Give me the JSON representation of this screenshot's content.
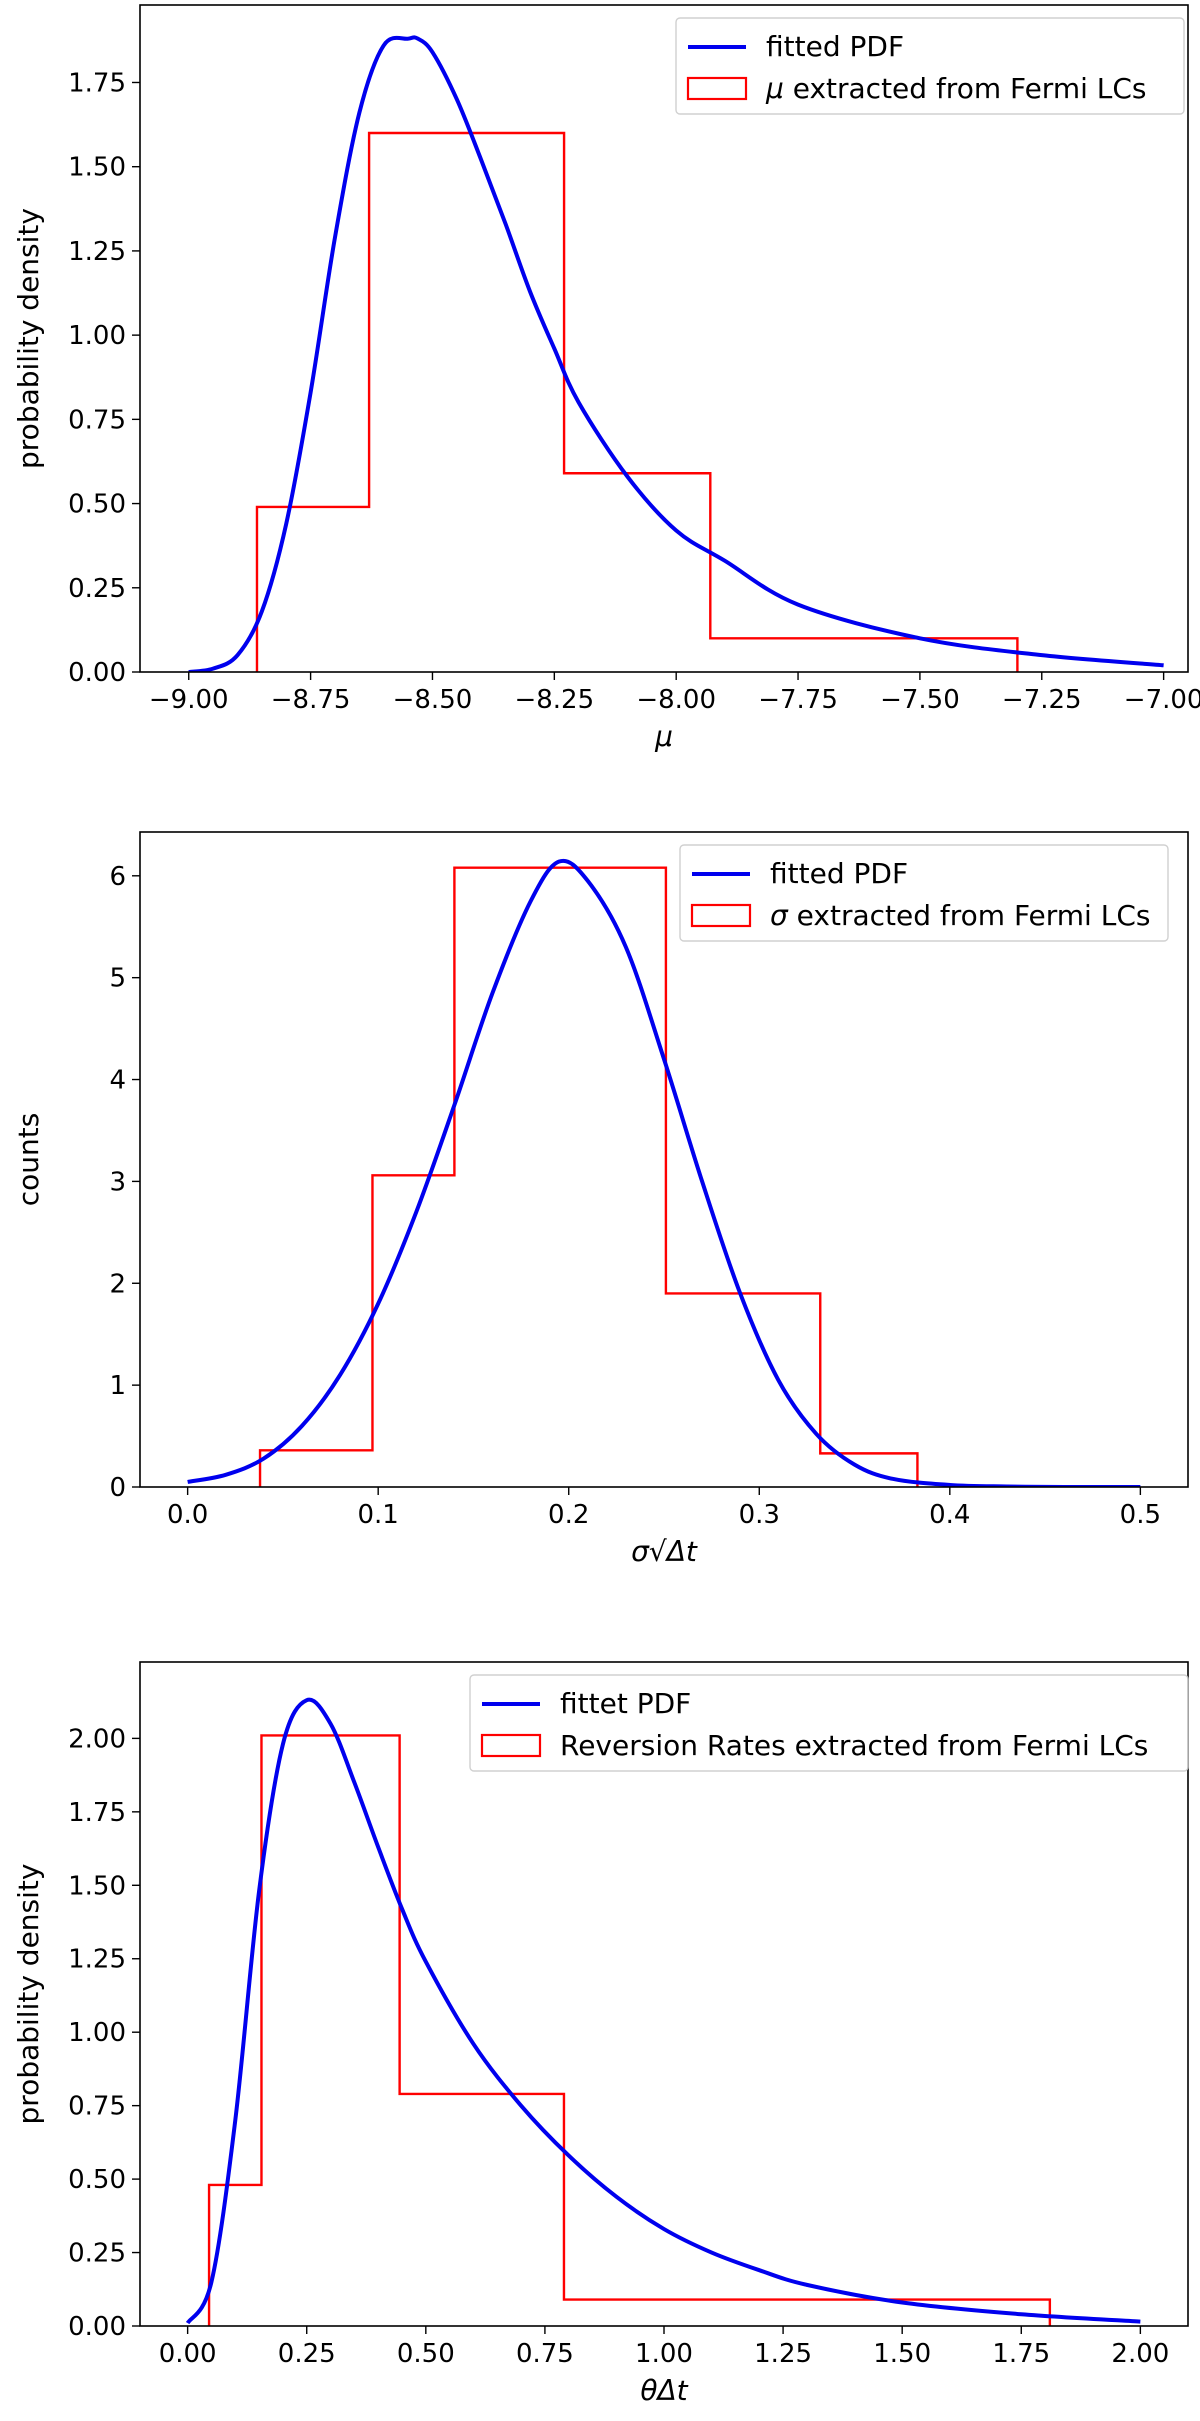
{
  "chart_data": [
    {
      "type": "histogram+line",
      "xlabel": "μ",
      "ylabel": "probability density",
      "xlim": [
        -9.1,
        -6.95
      ],
      "ylim": [
        0,
        1.98
      ],
      "xticks": [
        -9.0,
        -8.75,
        -8.5,
        -8.25,
        -8.0,
        -7.75,
        -7.5,
        -7.25,
        -7.0
      ],
      "xtick_labels": [
        "−9.00",
        "−8.75",
        "−8.50",
        "−8.25",
        "−8.00",
        "−7.75",
        "−7.50",
        "−7.25",
        "−7.00"
      ],
      "yticks": [
        0,
        0.25,
        0.5,
        0.75,
        1.0,
        1.25,
        1.5,
        1.75
      ],
      "ytick_labels": [
        "0.00",
        "0.25",
        "0.50",
        "0.75",
        "1.00",
        "1.25",
        "1.50",
        "1.75"
      ],
      "legend_placement": "top-right",
      "legend": [
        {
          "label": "fitted PDF",
          "kind": "line"
        },
        {
          "label_prefix": "μ",
          "label": "extracted from Fermi LCs",
          "kind": "patch"
        }
      ],
      "histogram": {
        "edges": [
          -8.86,
          -8.63,
          -8.23,
          -7.93,
          -7.3
        ],
        "values": [
          0.49,
          1.6,
          0.59,
          0.1
        ]
      },
      "curve": {
        "x": [
          -9.0,
          -8.95,
          -8.9,
          -8.85,
          -8.8,
          -8.75,
          -8.7,
          -8.65,
          -8.6,
          -8.55,
          -8.53,
          -8.5,
          -8.45,
          -8.4,
          -8.35,
          -8.3,
          -8.25,
          -8.2,
          -8.1,
          -8.0,
          -7.9,
          -7.75,
          -7.5,
          -7.25,
          -7.0
        ],
        "y": [
          0.0,
          0.01,
          0.05,
          0.18,
          0.44,
          0.83,
          1.29,
          1.66,
          1.86,
          1.88,
          1.88,
          1.84,
          1.7,
          1.52,
          1.33,
          1.13,
          0.96,
          0.8,
          0.58,
          0.42,
          0.33,
          0.2,
          0.1,
          0.05,
          0.02
        ]
      },
      "colors": {
        "curve": "#0000ee",
        "histogram": "#ff0000"
      }
    },
    {
      "type": "histogram+line",
      "xlabel": "σ√Δt",
      "ylabel": "counts",
      "xlim": [
        -0.025,
        0.525
      ],
      "ylim": [
        0,
        6.43
      ],
      "xticks": [
        0.0,
        0.1,
        0.2,
        0.3,
        0.4,
        0.5
      ],
      "xtick_labels": [
        "0.0",
        "0.1",
        "0.2",
        "0.3",
        "0.4",
        "0.5"
      ],
      "yticks": [
        0,
        1,
        2,
        3,
        4,
        5,
        6
      ],
      "ytick_labels": [
        "0",
        "1",
        "2",
        "3",
        "4",
        "5",
        "6"
      ],
      "legend_placement": "top-right",
      "legend": [
        {
          "label": "fitted PDF",
          "kind": "line"
        },
        {
          "label_prefix": "σ",
          "label": "extracted from Fermi LCs",
          "kind": "patch"
        }
      ],
      "histogram": {
        "edges": [
          0.038,
          0.097,
          0.14,
          0.251,
          0.332,
          0.383
        ],
        "values": [
          0.36,
          3.06,
          6.08,
          1.9,
          0.33
        ]
      },
      "curve": {
        "x": [
          0.0,
          0.02,
          0.04,
          0.06,
          0.08,
          0.1,
          0.12,
          0.14,
          0.16,
          0.18,
          0.195,
          0.21,
          0.23,
          0.25,
          0.27,
          0.29,
          0.31,
          0.33,
          0.35,
          0.37,
          0.4,
          0.43,
          0.46,
          0.5
        ],
        "y": [
          0.05,
          0.12,
          0.28,
          0.6,
          1.1,
          1.8,
          2.7,
          3.75,
          4.85,
          5.75,
          6.14,
          5.95,
          5.3,
          4.2,
          3.0,
          1.9,
          1.05,
          0.52,
          0.22,
          0.08,
          0.02,
          0.005,
          0.0,
          0.0
        ]
      },
      "colors": {
        "curve": "#0000ee",
        "histogram": "#ff0000"
      }
    },
    {
      "type": "histogram+line",
      "xlabel": "θΔt",
      "ylabel": "probability density",
      "xlim": [
        -0.1,
        2.1
      ],
      "ylim": [
        0,
        2.26
      ],
      "xticks": [
        0.0,
        0.25,
        0.5,
        0.75,
        1.0,
        1.25,
        1.5,
        1.75,
        2.0
      ],
      "xtick_labels": [
        "0.00",
        "0.25",
        "0.50",
        "0.75",
        "1.00",
        "1.25",
        "1.50",
        "1.75",
        "2.00"
      ],
      "yticks": [
        0,
        0.25,
        0.5,
        0.75,
        1.0,
        1.25,
        1.5,
        1.75,
        2.0
      ],
      "ytick_labels": [
        "0.00",
        "0.25",
        "0.50",
        "0.75",
        "1.00",
        "1.25",
        "1.50",
        "1.75",
        "2.00"
      ],
      "legend_placement": "top-right",
      "legend": [
        {
          "label": "fittet PDF",
          "kind": "line"
        },
        {
          "label": "Reversion Rates extracted from Fermi LCs",
          "kind": "patch"
        }
      ],
      "histogram": {
        "edges": [
          0.045,
          0.155,
          0.445,
          0.79,
          1.81
        ],
        "values": [
          0.48,
          2.01,
          0.79,
          0.09
        ]
      },
      "curve": {
        "x": [
          0.0,
          0.05,
          0.1,
          0.15,
          0.2,
          0.25,
          0.3,
          0.35,
          0.4,
          0.45,
          0.5,
          0.6,
          0.7,
          0.8,
          0.9,
          1.0,
          1.1,
          1.2,
          1.3,
          1.5,
          1.75,
          2.0
        ],
        "y": [
          0.01,
          0.15,
          0.7,
          1.48,
          1.98,
          2.13,
          2.05,
          1.85,
          1.63,
          1.42,
          1.24,
          0.96,
          0.75,
          0.58,
          0.44,
          0.33,
          0.25,
          0.19,
          0.14,
          0.08,
          0.04,
          0.015
        ]
      },
      "colors": {
        "curve": "#0000ee",
        "histogram": "#ff0000"
      }
    }
  ]
}
